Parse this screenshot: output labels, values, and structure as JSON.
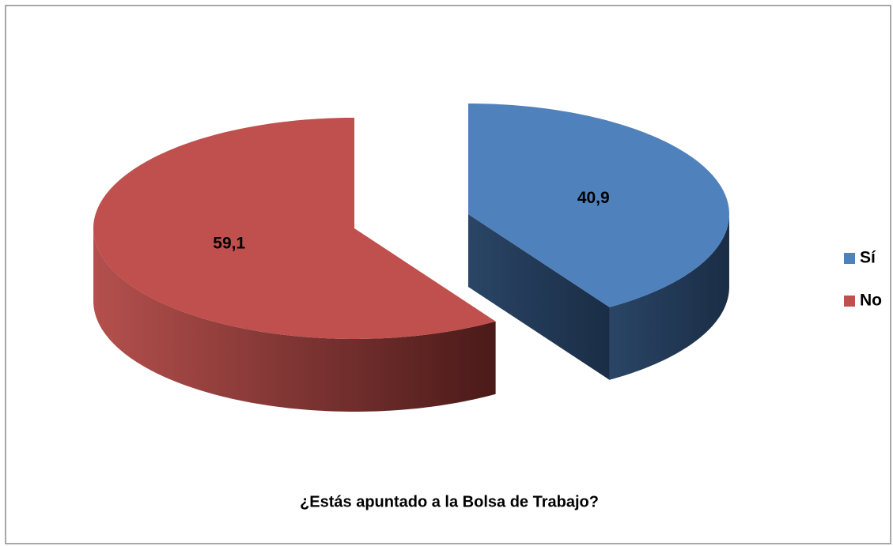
{
  "chart_data": {
    "type": "pie",
    "title": "¿Estás apuntado a la Bolsa de Trabajo?",
    "categories": [
      "Sí",
      "No"
    ],
    "values": [
      40.9,
      59.1
    ],
    "value_labels": [
      "40,9",
      "59,1"
    ],
    "colors": [
      "#4f81bd",
      "#c0504d"
    ],
    "legend": "right"
  }
}
